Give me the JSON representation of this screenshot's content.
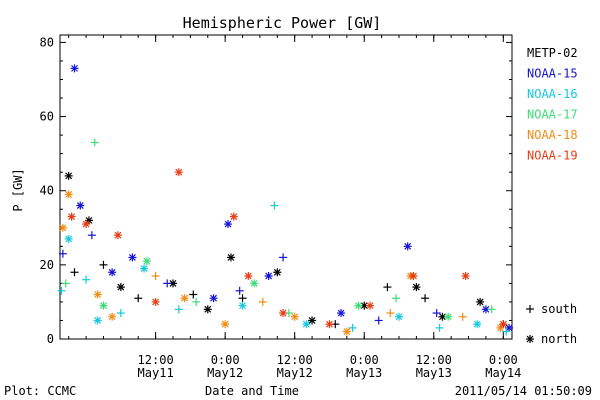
{
  "chart_data": {
    "type": "scatter",
    "title": "Hemispheric Power [GW]",
    "xlabel": "Date and Time",
    "ylabel": "P [GW]",
    "xlim": [
      "2011-05-10T19:30",
      "2011-05-14T01:30"
    ],
    "ylim": [
      0,
      82
    ],
    "yticks": [
      0,
      20,
      40,
      60,
      80
    ],
    "xticks": [
      {
        "t": "2011-05-11T12:00",
        "time": "12:00",
        "date": "May11"
      },
      {
        "t": "2011-05-12T00:00",
        "time": "0:00",
        "date": "May12"
      },
      {
        "t": "2011-05-12T12:00",
        "time": "12:00",
        "date": "May12"
      },
      {
        "t": "2011-05-13T00:00",
        "time": "0:00",
        "date": "May13"
      },
      {
        "t": "2011-05-13T12:00",
        "time": "12:00",
        "date": "May13"
      },
      {
        "t": "2011-05-14T00:00",
        "time": "0:00",
        "date": "May14"
      }
    ],
    "grid": false,
    "legend_position": "right",
    "marker_legend": [
      {
        "symbol": "+",
        "label": "south"
      },
      {
        "symbol": "*",
        "label": "north"
      }
    ],
    "series": [
      {
        "name": "METP-02",
        "color": "#000000",
        "points": [
          {
            "x": "2011-05-10T21:00",
            "y": 44,
            "m": "*"
          },
          {
            "x": "2011-05-10T22:00",
            "y": 18,
            "m": "+"
          },
          {
            "x": "2011-05-11T00:30",
            "y": 32,
            "m": "*"
          },
          {
            "x": "2011-05-11T03:00",
            "y": 20,
            "m": "+"
          },
          {
            "x": "2011-05-11T06:00",
            "y": 14,
            "m": "*"
          },
          {
            "x": "2011-05-11T09:00",
            "y": 11,
            "m": "+"
          },
          {
            "x": "2011-05-11T15:00",
            "y": 15,
            "m": "*"
          },
          {
            "x": "2011-05-11T18:30",
            "y": 12,
            "m": "+"
          },
          {
            "x": "2011-05-11T21:00",
            "y": 8,
            "m": "*"
          },
          {
            "x": "2011-05-12T01:00",
            "y": 22,
            "m": "*"
          },
          {
            "x": "2011-05-12T03:00",
            "y": 11,
            "m": "+"
          },
          {
            "x": "2011-05-12T09:00",
            "y": 18,
            "m": "*"
          },
          {
            "x": "2011-05-12T15:00",
            "y": 5,
            "m": "*"
          },
          {
            "x": "2011-05-12T19:00",
            "y": 4,
            "m": "+"
          },
          {
            "x": "2011-05-13T00:00",
            "y": 9,
            "m": "*"
          },
          {
            "x": "2011-05-13T04:00",
            "y": 14,
            "m": "+"
          },
          {
            "x": "2011-05-13T09:00",
            "y": 14,
            "m": "*"
          },
          {
            "x": "2011-05-13T10:30",
            "y": 11,
            "m": "+"
          },
          {
            "x": "2011-05-13T13:30",
            "y": 6,
            "m": "*"
          },
          {
            "x": "2011-05-13T20:00",
            "y": 10,
            "m": "*"
          },
          {
            "x": "2011-05-14T00:00",
            "y": 4,
            "m": "+"
          }
        ]
      },
      {
        "name": "NOAA-15",
        "color": "#1414d2",
        "points": [
          {
            "x": "2011-05-10T20:00",
            "y": 23,
            "m": "+"
          },
          {
            "x": "2011-05-10T22:00",
            "y": 73,
            "m": "*"
          },
          {
            "x": "2011-05-10T23:00",
            "y": 36,
            "m": "*"
          },
          {
            "x": "2011-05-11T01:00",
            "y": 28,
            "m": "+"
          },
          {
            "x": "2011-05-11T04:30",
            "y": 18,
            "m": "*"
          },
          {
            "x": "2011-05-11T08:00",
            "y": 22,
            "m": "*"
          },
          {
            "x": "2011-05-11T14:00",
            "y": 15,
            "m": "+"
          },
          {
            "x": "2011-05-11T22:00",
            "y": 11,
            "m": "*"
          },
          {
            "x": "2011-05-12T00:30",
            "y": 31,
            "m": "*"
          },
          {
            "x": "2011-05-12T02:30",
            "y": 13,
            "m": "+"
          },
          {
            "x": "2011-05-12T07:30",
            "y": 17,
            "m": "*"
          },
          {
            "x": "2011-05-12T10:00",
            "y": 22,
            "m": "+"
          },
          {
            "x": "2011-05-12T20:00",
            "y": 7,
            "m": "*"
          },
          {
            "x": "2011-05-13T02:30",
            "y": 5,
            "m": "+"
          },
          {
            "x": "2011-05-13T07:30",
            "y": 25,
            "m": "*"
          },
          {
            "x": "2011-05-13T12:30",
            "y": 7,
            "m": "+"
          },
          {
            "x": "2011-05-13T21:00",
            "y": 8,
            "m": "*"
          },
          {
            "x": "2011-05-14T01:00",
            "y": 3,
            "m": "*"
          }
        ]
      },
      {
        "name": "NOAA-16",
        "color": "#14c8dc",
        "points": [
          {
            "x": "2011-05-10T19:45",
            "y": 13,
            "m": "+"
          },
          {
            "x": "2011-05-10T21:00",
            "y": 27,
            "m": "*"
          },
          {
            "x": "2011-05-11T00:00",
            "y": 16,
            "m": "+"
          },
          {
            "x": "2011-05-11T02:00",
            "y": 5,
            "m": "*"
          },
          {
            "x": "2011-05-11T06:00",
            "y": 7,
            "m": "+"
          },
          {
            "x": "2011-05-11T10:00",
            "y": 19,
            "m": "*"
          },
          {
            "x": "2011-05-11T16:00",
            "y": 8,
            "m": "+"
          },
          {
            "x": "2011-05-12T03:00",
            "y": 9,
            "m": "*"
          },
          {
            "x": "2011-05-12T08:30",
            "y": 36,
            "m": "+"
          },
          {
            "x": "2011-05-12T14:00",
            "y": 4,
            "m": "*"
          },
          {
            "x": "2011-05-12T22:00",
            "y": 3,
            "m": "+"
          },
          {
            "x": "2011-05-13T06:00",
            "y": 6,
            "m": "*"
          },
          {
            "x": "2011-05-13T13:00",
            "y": 3,
            "m": "+"
          },
          {
            "x": "2011-05-13T19:30",
            "y": 4,
            "m": "*"
          },
          {
            "x": "2011-05-14T00:30",
            "y": 2,
            "m": "+"
          }
        ]
      },
      {
        "name": "NOAA-17",
        "color": "#3cdc78",
        "points": [
          {
            "x": "2011-05-10T20:30",
            "y": 15,
            "m": "+"
          },
          {
            "x": "2011-05-11T01:30",
            "y": 53,
            "m": "+"
          },
          {
            "x": "2011-05-11T03:00",
            "y": 9,
            "m": "*"
          },
          {
            "x": "2011-05-11T10:30",
            "y": 21,
            "m": "*"
          },
          {
            "x": "2011-05-11T19:00",
            "y": 10,
            "m": "+"
          },
          {
            "x": "2011-05-12T05:00",
            "y": 15,
            "m": "*"
          },
          {
            "x": "2011-05-12T11:00",
            "y": 7,
            "m": "+"
          },
          {
            "x": "2011-05-12T23:00",
            "y": 9,
            "m": "*"
          },
          {
            "x": "2011-05-13T05:30",
            "y": 11,
            "m": "+"
          },
          {
            "x": "2011-05-13T14:30",
            "y": 6,
            "m": "*"
          },
          {
            "x": "2011-05-13T22:00",
            "y": 8,
            "m": "+"
          }
        ]
      },
      {
        "name": "NOAA-18",
        "color": "#f08c14",
        "points": [
          {
            "x": "2011-05-10T20:00",
            "y": 30,
            "m": "*"
          },
          {
            "x": "2011-05-10T21:00",
            "y": 39,
            "m": "*"
          },
          {
            "x": "2011-05-11T02:00",
            "y": 12,
            "m": "*"
          },
          {
            "x": "2011-05-11T04:30",
            "y": 6,
            "m": "*"
          },
          {
            "x": "2011-05-11T12:00",
            "y": 17,
            "m": "+"
          },
          {
            "x": "2011-05-11T17:00",
            "y": 11,
            "m": "*"
          },
          {
            "x": "2011-05-12T00:00",
            "y": 4,
            "m": "*"
          },
          {
            "x": "2011-05-12T06:30",
            "y": 10,
            "m": "+"
          },
          {
            "x": "2011-05-12T12:00",
            "y": 6,
            "m": "*"
          },
          {
            "x": "2011-05-12T21:00",
            "y": 2,
            "m": "*"
          },
          {
            "x": "2011-05-13T04:30",
            "y": 7,
            "m": "+"
          },
          {
            "x": "2011-05-13T08:00",
            "y": 17,
            "m": "*"
          },
          {
            "x": "2011-05-13T17:00",
            "y": 6,
            "m": "+"
          },
          {
            "x": "2011-05-13T23:30",
            "y": 3,
            "m": "*"
          }
        ]
      },
      {
        "name": "NOAA-19",
        "color": "#e63c14",
        "points": [
          {
            "x": "2011-05-10T21:30",
            "y": 33,
            "m": "*"
          },
          {
            "x": "2011-05-11T00:00",
            "y": 31,
            "m": "*"
          },
          {
            "x": "2011-05-11T05:30",
            "y": 28,
            "m": "*"
          },
          {
            "x": "2011-05-11T12:00",
            "y": 10,
            "m": "*"
          },
          {
            "x": "2011-05-11T16:00",
            "y": 45,
            "m": "*"
          },
          {
            "x": "2011-05-12T01:30",
            "y": 33,
            "m": "*"
          },
          {
            "x": "2011-05-12T04:00",
            "y": 17,
            "m": "*"
          },
          {
            "x": "2011-05-12T10:00",
            "y": 7,
            "m": "*"
          },
          {
            "x": "2011-05-12T18:00",
            "y": 4,
            "m": "*"
          },
          {
            "x": "2011-05-13T01:00",
            "y": 9,
            "m": "*"
          },
          {
            "x": "2011-05-13T08:30",
            "y": 17,
            "m": "*"
          },
          {
            "x": "2011-05-13T17:30",
            "y": 17,
            "m": "*"
          },
          {
            "x": "2011-05-14T00:00",
            "y": 4,
            "m": "*"
          }
        ]
      }
    ]
  },
  "footer": {
    "left": "Plot: CCMC",
    "right": "2011/05/14 01:50:09"
  }
}
